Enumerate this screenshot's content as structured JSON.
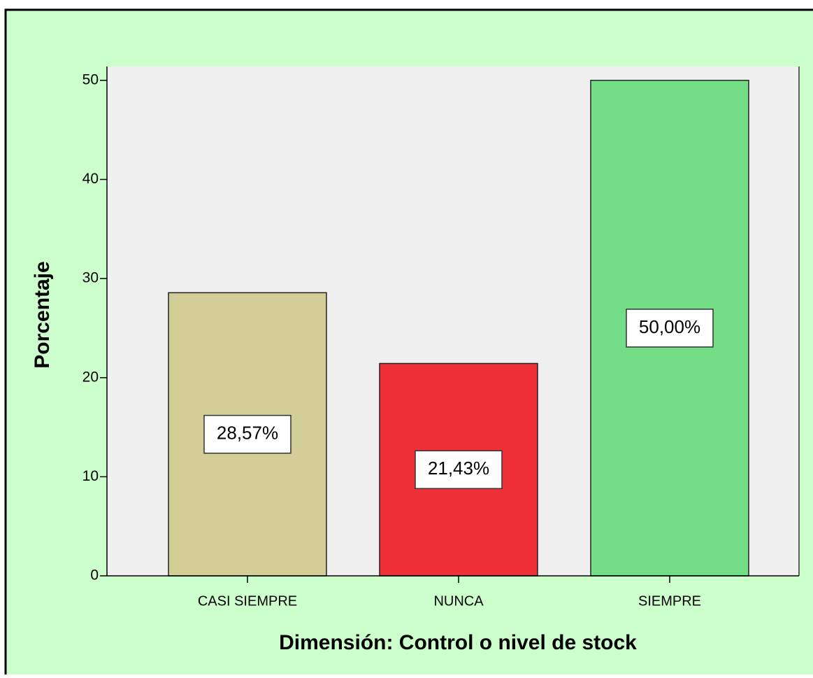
{
  "chart_data": {
    "type": "bar",
    "x_label": "Dimensión: Control o nivel de stock",
    "y_label": "Porcentaje",
    "categories": [
      "CASI SIEMPRE",
      "NUNCA",
      "SIEMPRE"
    ],
    "values": [
      28.57,
      21.43,
      50.0
    ],
    "value_labels": [
      "28,57%",
      "21,43%",
      "50,00%"
    ],
    "colors": [
      "#d3ce97",
      "#ef3038",
      "#74de86"
    ],
    "ylim": [
      0,
      51.4
    ],
    "yticks": [
      0,
      10,
      20,
      30,
      40,
      50
    ],
    "grid": false
  }
}
